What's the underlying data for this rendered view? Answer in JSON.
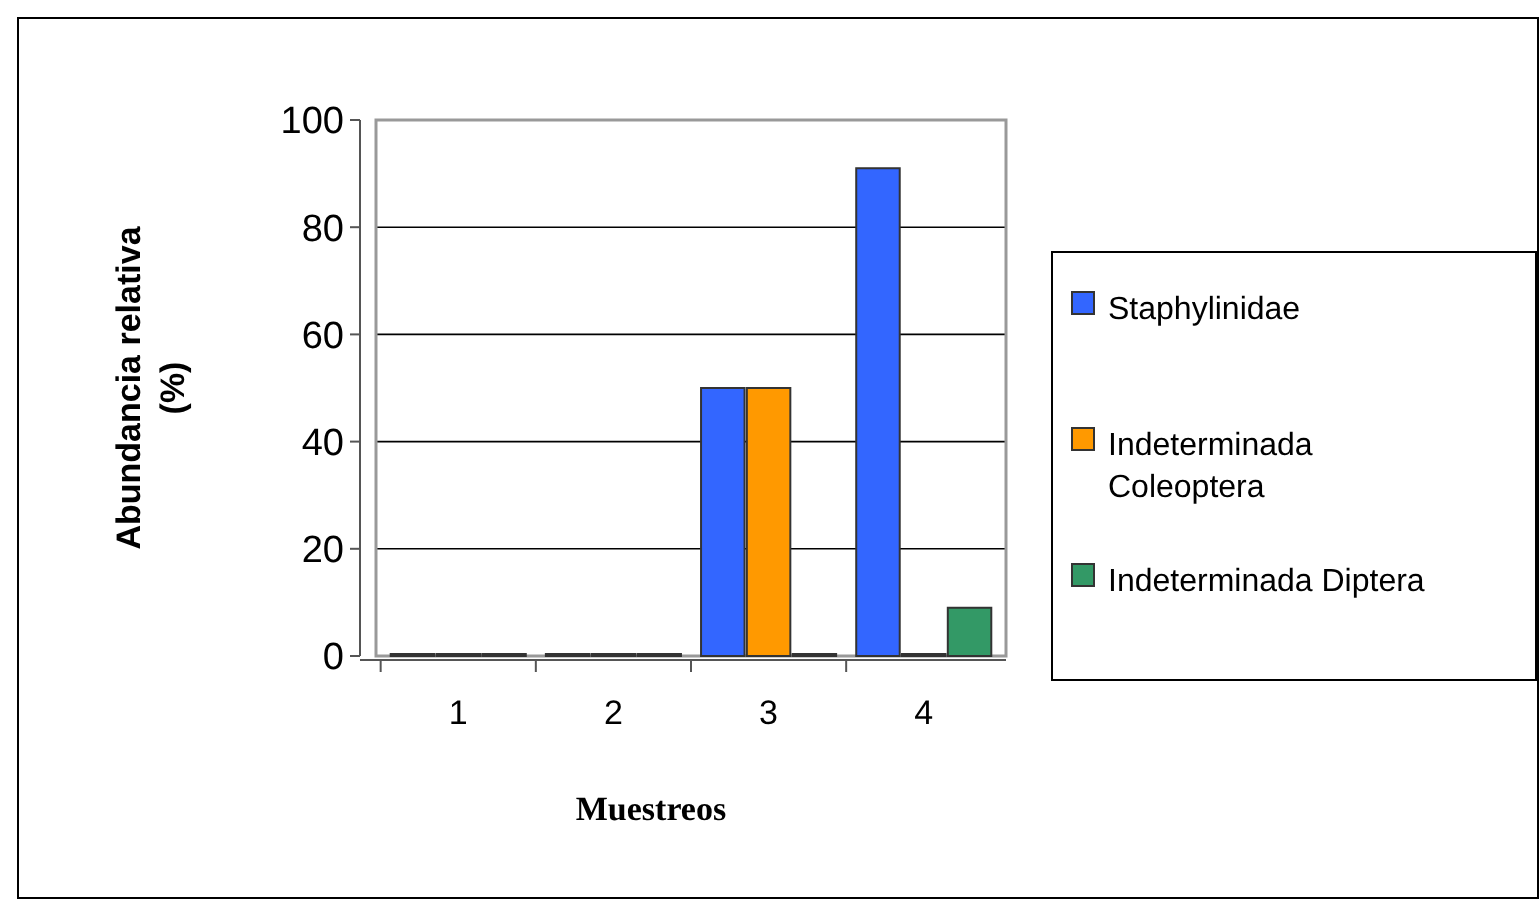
{
  "chart_data": {
    "type": "bar",
    "xlabel": "Muestreos",
    "ylabel": "Abundancia relativa (%)",
    "categories": [
      "1",
      "2",
      "3",
      "4"
    ],
    "series": [
      {
        "name": "Staphylinidae",
        "color": "#3366ff",
        "values": [
          0,
          0,
          50,
          91
        ]
      },
      {
        "name": "Indeterminada Coleoptera",
        "color": "#ff9900",
        "values": [
          0,
          0,
          50,
          0
        ]
      },
      {
        "name": "Indeterminada Diptera",
        "color": "#339966",
        "values": [
          0,
          0,
          0,
          9
        ]
      }
    ],
    "ylim": [
      0,
      100
    ],
    "yticks": [
      0,
      20,
      40,
      60,
      80,
      100
    ],
    "grid": "y",
    "legend": "right"
  }
}
